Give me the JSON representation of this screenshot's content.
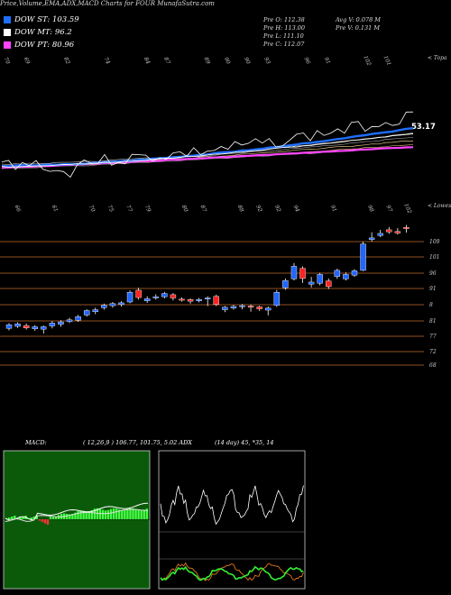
{
  "header": {
    "title": "Price,Volume,EMA,ADX,MACD Charts for FOUR MunafaSutra.com"
  },
  "legend": [
    {
      "label": "DOW ST: 103.59",
      "color": "#1f6fff"
    },
    {
      "label": "DOW MT: 96.2",
      "color": "#ffffff"
    },
    {
      "label": "DOW PT: 80.96",
      "color": "#ff44ff"
    }
  ],
  "stats": {
    "prev_open": "Pre   O: 112.38",
    "prev_high": "Pre   H: 113.00",
    "prev_low": "Pre   L: 111.10",
    "prev_close": "Pre   C: 112.07",
    "avg_vol": "Avg V: 0.078 M",
    "prev_vol": "Pre   V: 0.131 M"
  },
  "ema_panel": {
    "top_labels": [
      "70",
      "69",
      "",
      "82",
      "",
      "74",
      "",
      "84",
      "87",
      "",
      "89",
      "90",
      "90",
      "93",
      "",
      "96",
      "91",
      "",
      "102",
      "101"
    ],
    "right_label": "< Topa",
    "price_label": "53.17"
  },
  "candle_panel": {
    "top_labels": [
      "66",
      "",
      "61",
      "",
      "70",
      "75",
      "77",
      "79",
      "",
      "80",
      "87",
      "",
      "88",
      "92",
      "92",
      "94",
      "",
      "91",
      "",
      "98",
      "97",
      "102"
    ],
    "right_label": "< Lowest",
    "levels": [
      109,
      101,
      96,
      91,
      8,
      81,
      77,
      72,
      68
    ],
    "candles": [
      {
        "o": 87.5,
        "c": 88.4,
        "h": 88.8,
        "l": 87.0
      },
      {
        "o": 88.0,
        "c": 88.6,
        "h": 89.0,
        "l": 87.6
      },
      {
        "o": 88.2,
        "c": 87.6,
        "h": 88.7,
        "l": 87.2
      },
      {
        "o": 87.4,
        "c": 87.9,
        "h": 88.3,
        "l": 86.9
      },
      {
        "o": 87.3,
        "c": 87.9,
        "h": 88.2,
        "l": 86.2
      },
      {
        "o": 88.1,
        "c": 88.8,
        "h": 89.3,
        "l": 87.5
      },
      {
        "o": 88.5,
        "c": 89.1,
        "h": 89.5,
        "l": 87.9
      },
      {
        "o": 89.2,
        "c": 89.6,
        "h": 90.1,
        "l": 88.8
      },
      {
        "o": 89.5,
        "c": 90.4,
        "h": 90.8,
        "l": 89.1
      },
      {
        "o": 90.8,
        "c": 91.9,
        "h": 92.2,
        "l": 90.4
      },
      {
        "o": 91.6,
        "c": 92.1,
        "h": 92.6,
        "l": 91.0
      },
      {
        "o": 92.6,
        "c": 93.2,
        "h": 93.6,
        "l": 92.1
      },
      {
        "o": 93.1,
        "c": 93.6,
        "h": 94.0,
        "l": 92.6
      },
      {
        "o": 93.4,
        "c": 93.8,
        "h": 94.2,
        "l": 92.9
      },
      {
        "o": 94.0,
        "c": 96.4,
        "h": 96.9,
        "l": 93.7
      },
      {
        "o": 96.9,
        "c": 95.1,
        "h": 97.5,
        "l": 94.6
      },
      {
        "o": 94.3,
        "c": 94.8,
        "h": 95.4,
        "l": 93.8
      },
      {
        "o": 95.0,
        "c": 95.3,
        "h": 95.9,
        "l": 94.6
      },
      {
        "o": 95.3,
        "c": 96.1,
        "h": 96.5,
        "l": 94.9
      },
      {
        "o": 95.8,
        "c": 95.0,
        "h": 96.2,
        "l": 94.4
      },
      {
        "o": 94.7,
        "c": 94.5,
        "h": 95.1,
        "l": 94.1
      },
      {
        "o": 94.6,
        "c": 94.2,
        "h": 94.9,
        "l": 93.6
      },
      {
        "o": 94.3,
        "c": 94.6,
        "h": 95.0,
        "l": 93.9
      },
      {
        "o": 94.8,
        "c": 95.0,
        "h": 95.4,
        "l": 93.0
      },
      {
        "o": 95.4,
        "c": 93.4,
        "h": 95.8,
        "l": 93.0
      },
      {
        "o": 92.1,
        "c": 92.7,
        "h": 93.0,
        "l": 91.5
      },
      {
        "o": 92.5,
        "c": 92.9,
        "h": 93.3,
        "l": 92.1
      },
      {
        "o": 93.0,
        "c": 93.1,
        "h": 93.5,
        "l": 92.2
      },
      {
        "o": 93.0,
        "c": 92.7,
        "h": 93.4,
        "l": 91.6
      },
      {
        "o": 92.8,
        "c": 92.3,
        "h": 93.1,
        "l": 91.8
      },
      {
        "o": 92.0,
        "c": 92.5,
        "h": 92.9,
        "l": 90.7
      },
      {
        "o": 93.2,
        "c": 96.4,
        "h": 97.0,
        "l": 92.8
      },
      {
        "o": 97.5,
        "c": 99.3,
        "h": 99.8,
        "l": 97.0
      },
      {
        "o": 99.7,
        "c": 102.8,
        "h": 103.6,
        "l": 99.3
      },
      {
        "o": 102.3,
        "c": 99.8,
        "h": 102.8,
        "l": 98.7
      },
      {
        "o": 98.4,
        "c": 98.9,
        "h": 100.2,
        "l": 97.6
      },
      {
        "o": 98.6,
        "c": 100.8,
        "h": 101.2,
        "l": 98.1
      },
      {
        "o": 99.2,
        "c": 97.8,
        "h": 99.8,
        "l": 97.2
      },
      {
        "o": 100.3,
        "c": 101.8,
        "h": 102.2,
        "l": 99.7
      },
      {
        "o": 99.7,
        "c": 100.8,
        "h": 101.3,
        "l": 99.3
      },
      {
        "o": 100.6,
        "c": 101.7,
        "h": 102.1,
        "l": 100.2
      },
      {
        "o": 101.8,
        "c": 108.3,
        "h": 108.9,
        "l": 101.6
      },
      {
        "o": 109.4,
        "c": 109.8,
        "h": 111.2,
        "l": 108.9
      },
      {
        "o": 110.4,
        "c": 110.9,
        "h": 111.8,
        "l": 110.0
      },
      {
        "o": 111.8,
        "c": 111.3,
        "h": 112.5,
        "l": 110.8
      },
      {
        "o": 111.4,
        "c": 111.0,
        "h": 112.2,
        "l": 110.6
      },
      {
        "o": 112.4,
        "c": 112.1,
        "h": 113.0,
        "l": 111.1
      }
    ]
  },
  "indicators": {
    "macd_label": "MACD:",
    "macd_values": "( 12,26,9 ) 106.77,  101.75, 5.02 ADX",
    "adx_values": "(14  day) 45,  *35,  14"
  },
  "colors": {
    "candle_up": "#2266ff",
    "candle_down": "#ff2222",
    "level_line": "#c26a2a",
    "ema_st": "#1f6fff",
    "ema_pt": "#ff44ff",
    "macd_bg": "#0a5a0a",
    "macd_hist": "#44ff44"
  }
}
